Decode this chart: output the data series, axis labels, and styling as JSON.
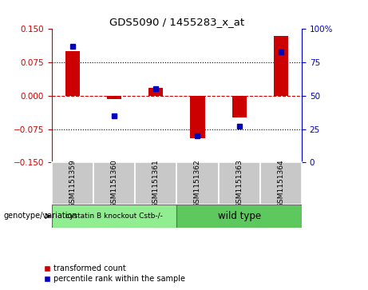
{
  "title": "GDS5090 / 1455283_x_at",
  "samples": [
    "GSM1151359",
    "GSM1151360",
    "GSM1151361",
    "GSM1151362",
    "GSM1151363",
    "GSM1151364"
  ],
  "red_values": [
    0.1,
    -0.008,
    0.018,
    -0.096,
    -0.048,
    0.135
  ],
  "blue_percentiles": [
    87,
    35,
    55,
    20,
    27,
    83
  ],
  "ylim_left": [
    -0.15,
    0.15
  ],
  "ylim_right": [
    0,
    100
  ],
  "yticks_left": [
    -0.15,
    -0.075,
    0,
    0.075,
    0.15
  ],
  "yticks_right": [
    0,
    25,
    50,
    75,
    100
  ],
  "group1_label": "cystatin B knockout Cstb-/-",
  "group2_label": "wild type",
  "group1_indices": [
    0,
    1,
    2
  ],
  "group2_indices": [
    3,
    4,
    5
  ],
  "group1_color": "#90EE90",
  "group2_color": "#5DC85D",
  "sample_box_color": "#C8C8C8",
  "red_color": "#CC0000",
  "blue_color": "#0000BB",
  "legend_label_red": "transformed count",
  "legend_label_blue": "percentile rank within the sample",
  "genotype_label": "genotype/variation",
  "bar_width": 0.35
}
